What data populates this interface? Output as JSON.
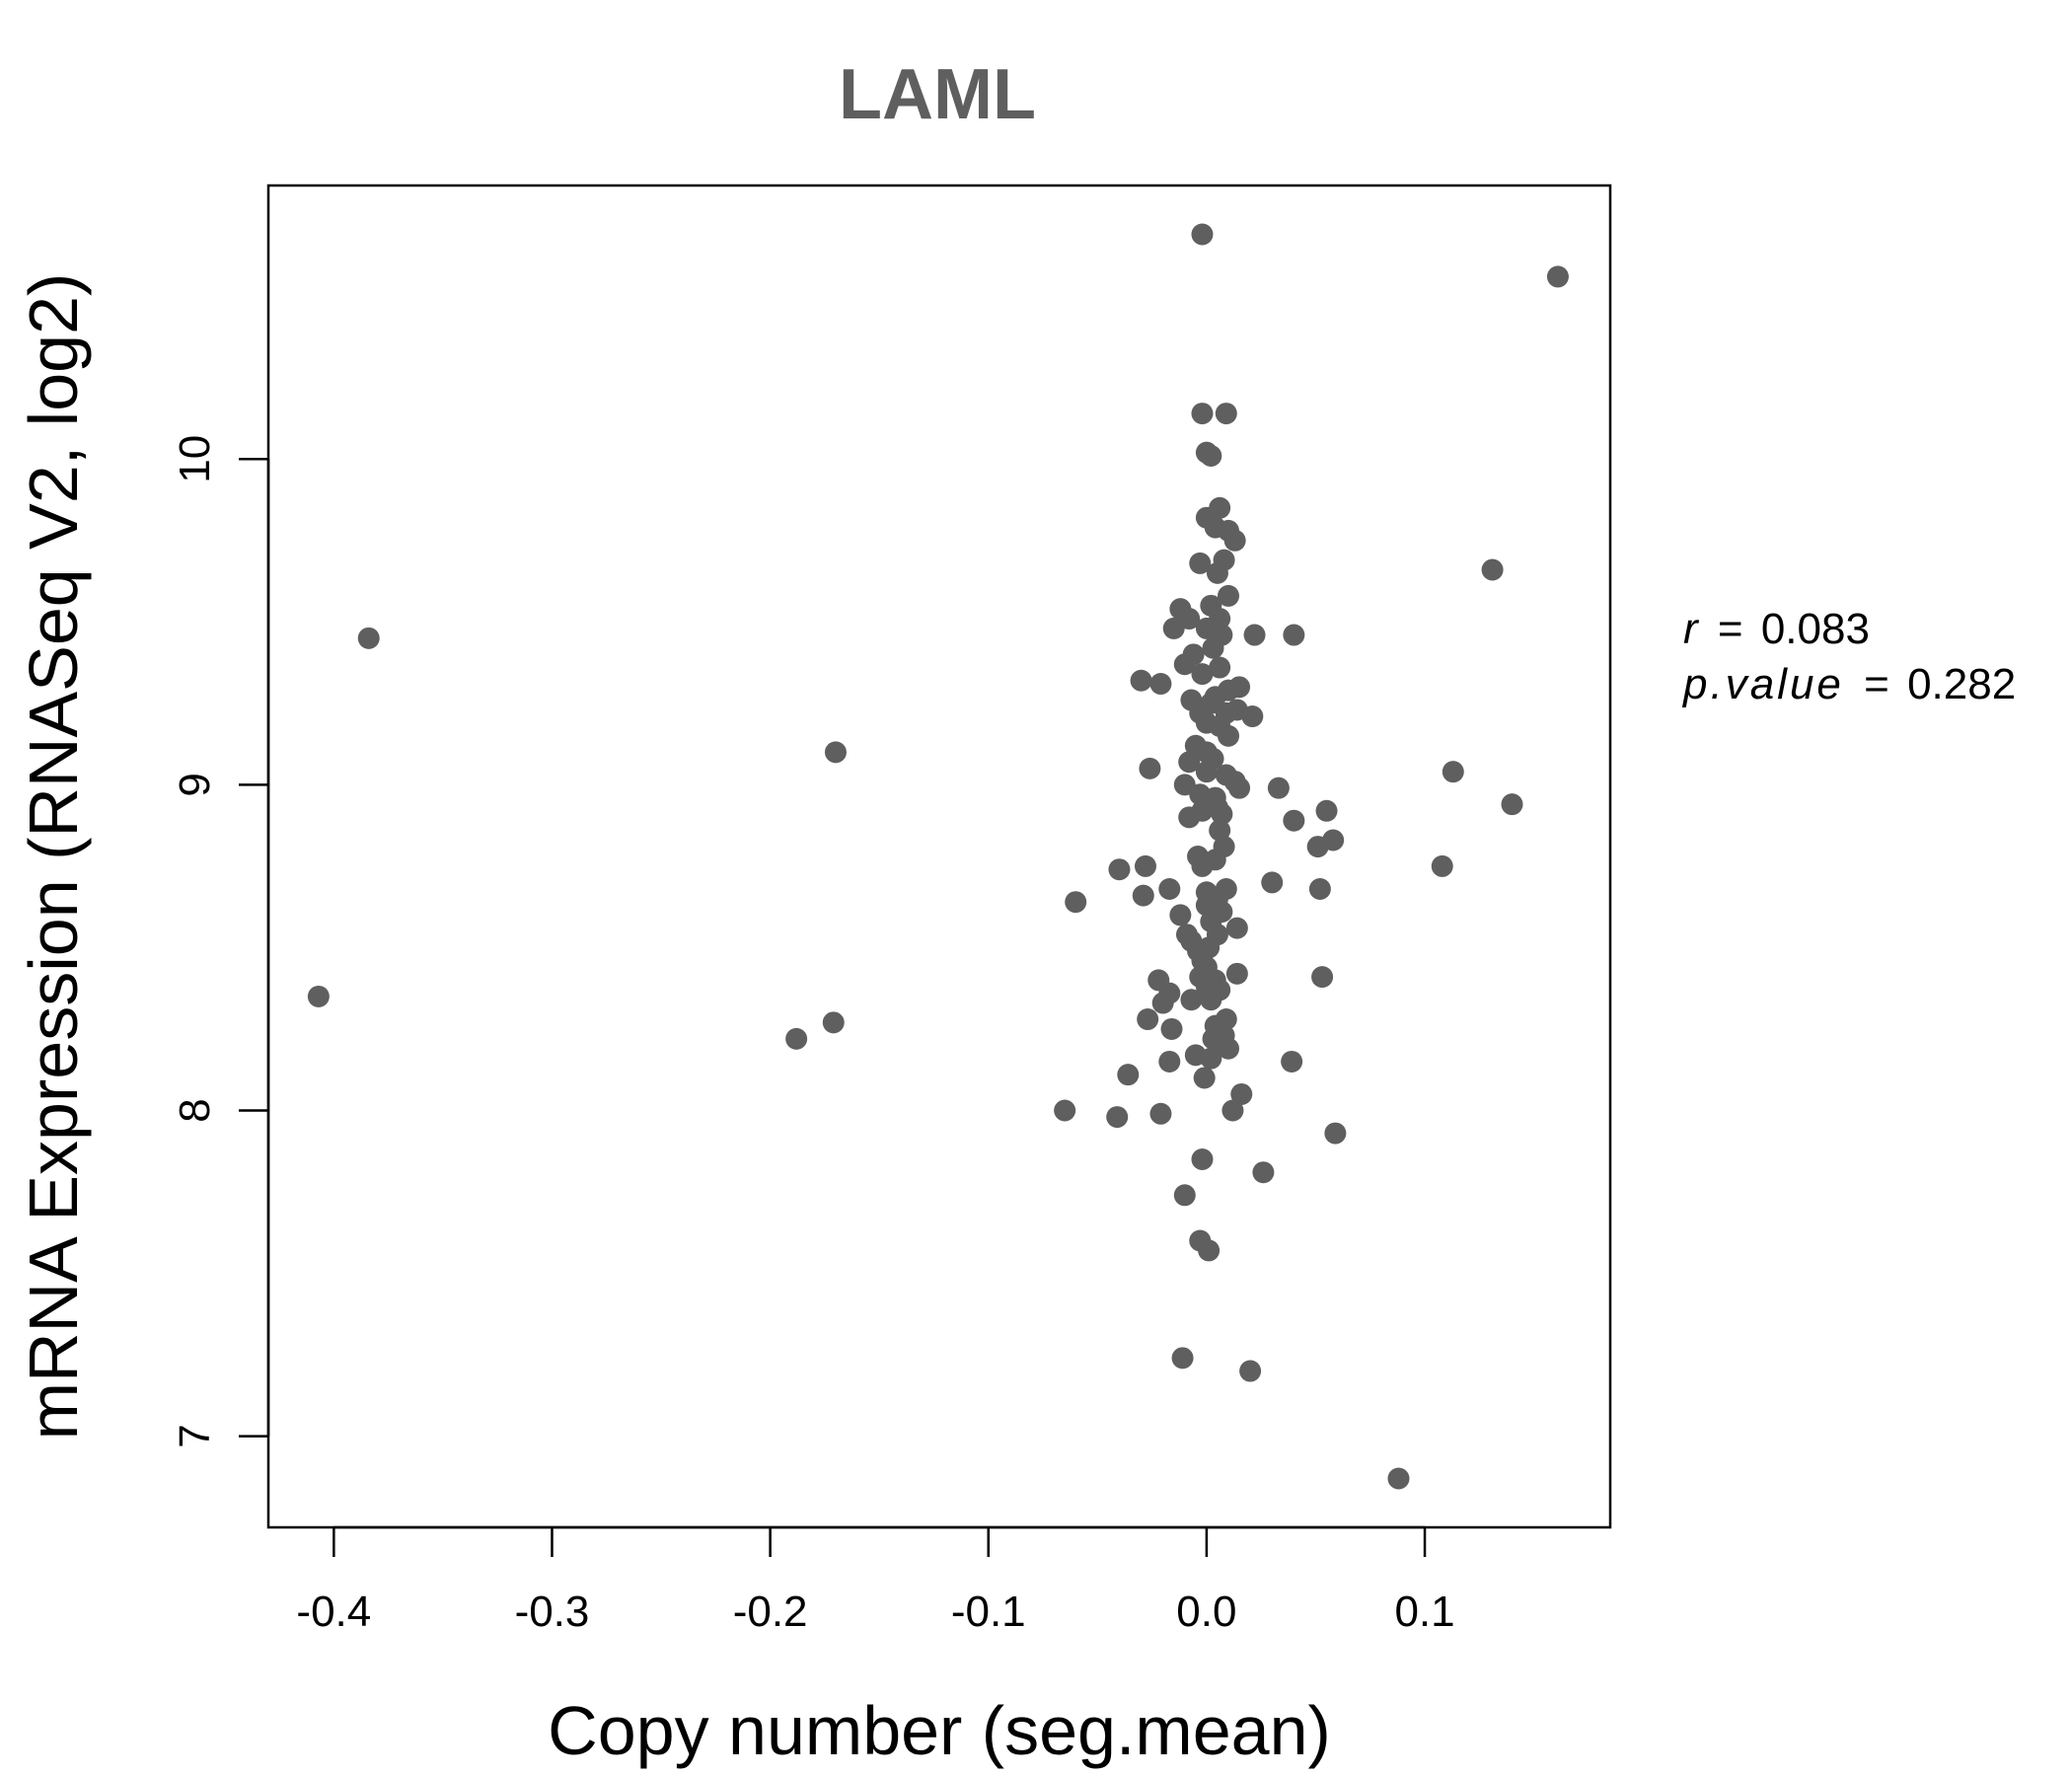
{
  "chart_data": {
    "type": "scatter",
    "title": "LAML",
    "xlabel": "Copy number (seg.mean)",
    "ylabel": "mRNA Expression (RNASeq V2, log2)",
    "xlim": [
      -0.43,
      0.185
    ],
    "ylim": [
      6.72,
      10.84
    ],
    "xticks": [
      -0.4,
      -0.3,
      -0.2,
      -0.1,
      0.0,
      0.1
    ],
    "xtick_labels": [
      "-0.4",
      "-0.3",
      "-0.2",
      "-0.1",
      "0.0",
      "0.1"
    ],
    "yticks": [
      7,
      8,
      9,
      10
    ],
    "ytick_labels": [
      "7",
      "8",
      "9",
      "10"
    ],
    "point_color": "#5f5f5f",
    "title_color": "#5f5f5f",
    "stats": {
      "r_label": "r",
      "r_value": "0.083",
      "p_label": "p.value",
      "p_value": "0.282",
      "equals": "="
    },
    "points": [
      [
        -0.002,
        10.69
      ],
      [
        0.161,
        10.56
      ],
      [
        -0.002,
        10.14
      ],
      [
        0.009,
        10.14
      ],
      [
        0.0,
        10.02
      ],
      [
        0.002,
        10.01
      ],
      [
        0.006,
        9.85
      ],
      [
        0.0,
        9.82
      ],
      [
        0.004,
        9.79
      ],
      [
        0.01,
        9.78
      ],
      [
        0.013,
        9.75
      ],
      [
        -0.003,
        9.68
      ],
      [
        0.008,
        9.69
      ],
      [
        0.005,
        9.65
      ],
      [
        0.131,
        9.66
      ],
      [
        0.01,
        9.58
      ],
      [
        -0.012,
        9.54
      ],
      [
        0.002,
        9.55
      ],
      [
        0.006,
        9.51
      ],
      [
        -0.008,
        9.51
      ],
      [
        -0.015,
        9.48
      ],
      [
        0.0,
        9.48
      ],
      [
        0.005,
        9.47
      ],
      [
        0.007,
        9.46
      ],
      [
        0.022,
        9.46
      ],
      [
        0.04,
        9.46
      ],
      [
        -0.384,
        9.45
      ],
      [
        0.003,
        9.42
      ],
      [
        -0.006,
        9.4
      ],
      [
        -0.01,
        9.37
      ],
      [
        0.006,
        9.36
      ],
      [
        -0.002,
        9.34
      ],
      [
        -0.03,
        9.32
      ],
      [
        -0.021,
        9.31
      ],
      [
        0.015,
        9.3
      ],
      [
        0.01,
        9.29
      ],
      [
        0.004,
        9.27
      ],
      [
        -0.007,
        9.26
      ],
      [
        0.002,
        9.25
      ],
      [
        0.014,
        9.23
      ],
      [
        -0.003,
        9.22
      ],
      [
        0.009,
        9.22
      ],
      [
        0.021,
        9.21
      ],
      [
        0.0,
        9.19
      ],
      [
        0.006,
        9.18
      ],
      [
        0.01,
        9.15
      ],
      [
        -0.005,
        9.12
      ],
      [
        -0.17,
        9.1
      ],
      [
        0.0,
        9.1
      ],
      [
        0.003,
        9.08
      ],
      [
        -0.008,
        9.07
      ],
      [
        -0.026,
        9.05
      ],
      [
        0.113,
        9.04
      ],
      [
        0.0,
        9.04
      ],
      [
        0.009,
        9.03
      ],
      [
        0.013,
        9.01
      ],
      [
        -0.01,
        9.0
      ],
      [
        0.015,
        8.99
      ],
      [
        0.033,
        8.99
      ],
      [
        -0.003,
        8.97
      ],
      [
        0.004,
        8.96
      ],
      [
        0.14,
        8.94
      ],
      [
        0.005,
        8.93
      ],
      [
        -0.002,
        8.92
      ],
      [
        0.055,
        8.92
      ],
      [
        0.007,
        8.91
      ],
      [
        -0.008,
        8.9
      ],
      [
        0.04,
        8.89
      ],
      [
        0.006,
        8.86
      ],
      [
        0.058,
        8.83
      ],
      [
        0.051,
        8.81
      ],
      [
        0.008,
        8.81
      ],
      [
        -0.004,
        8.78
      ],
      [
        0.004,
        8.77
      ],
      [
        0.108,
        8.75
      ],
      [
        -0.028,
        8.75
      ],
      [
        -0.002,
        8.75
      ],
      [
        -0.04,
        8.74
      ],
      [
        0.03,
        8.7
      ],
      [
        -0.017,
        8.68
      ],
      [
        0.052,
        8.68
      ],
      [
        0.009,
        8.68
      ],
      [
        0.0,
        8.67
      ],
      [
        -0.029,
        8.66
      ],
      [
        0.005,
        8.65
      ],
      [
        -0.06,
        8.64
      ],
      [
        0.0,
        8.63
      ],
      [
        0.007,
        8.61
      ],
      [
        -0.012,
        8.6
      ],
      [
        0.002,
        8.58
      ],
      [
        0.014,
        8.56
      ],
      [
        -0.009,
        8.54
      ],
      [
        0.005,
        8.54
      ],
      [
        -0.007,
        8.52
      ],
      [
        0.001,
        8.5
      ],
      [
        -0.004,
        8.49
      ],
      [
        -0.002,
        8.46
      ],
      [
        0.0,
        8.44
      ],
      [
        0.014,
        8.42
      ],
      [
        0.053,
        8.41
      ],
      [
        -0.003,
        8.41
      ],
      [
        0.004,
        8.4
      ],
      [
        -0.022,
        8.4
      ],
      [
        0.0,
        8.38
      ],
      [
        0.006,
        8.37
      ],
      [
        -0.017,
        8.36
      ],
      [
        -0.007,
        8.34
      ],
      [
        0.002,
        8.34
      ],
      [
        -0.02,
        8.33
      ],
      [
        0.009,
        8.28
      ],
      [
        -0.027,
        8.28
      ],
      [
        -0.171,
        8.27
      ],
      [
        0.004,
        8.26
      ],
      [
        -0.016,
        8.25
      ],
      [
        0.008,
        8.23
      ],
      [
        0.003,
        8.22
      ],
      [
        -0.188,
        8.22
      ],
      [
        0.006,
        8.2
      ],
      [
        0.01,
        8.19
      ],
      [
        -0.005,
        8.17
      ],
      [
        0.002,
        8.16
      ],
      [
        0.039,
        8.15
      ],
      [
        -0.017,
        8.15
      ],
      [
        -0.036,
        8.11
      ],
      [
        -0.001,
        8.1
      ],
      [
        0.016,
        8.05
      ],
      [
        0.012,
        8.0
      ],
      [
        -0.065,
        8.0
      ],
      [
        -0.041,
        7.98
      ],
      [
        -0.021,
        7.99
      ],
      [
        0.059,
        7.93
      ],
      [
        -0.002,
        7.85
      ],
      [
        0.026,
        7.81
      ],
      [
        -0.01,
        7.74
      ],
      [
        -0.003,
        7.6
      ],
      [
        0.001,
        7.57
      ],
      [
        -0.407,
        8.35
      ],
      [
        -0.011,
        7.24
      ],
      [
        0.02,
        7.2
      ],
      [
        0.088,
        6.87
      ]
    ]
  }
}
